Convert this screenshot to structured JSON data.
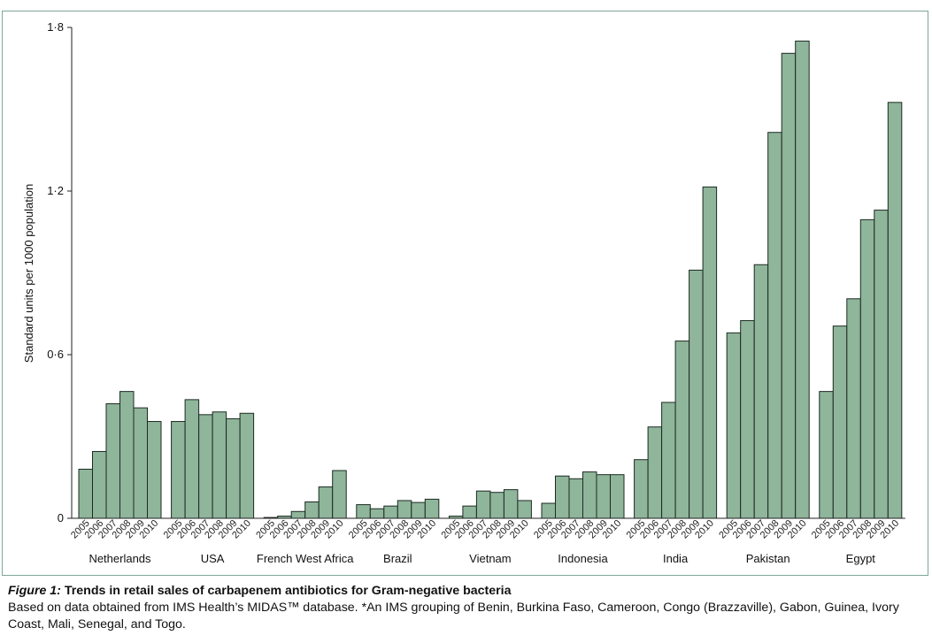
{
  "chart_data": {
    "type": "bar",
    "ylabel": "Standard units per 1000 population",
    "xlabel": "",
    "ylim": [
      0,
      1.8
    ],
    "yticks": [
      {
        "value": 0,
        "label": "0"
      },
      {
        "value": 0.6,
        "label": "0·6"
      },
      {
        "value": 1.2,
        "label": "1·2"
      },
      {
        "value": 1.8,
        "label": "1·8"
      }
    ],
    "years": [
      "2005",
      "2006",
      "2007",
      "2008",
      "2009",
      "2010"
    ],
    "groups": [
      {
        "name": "Netherlands",
        "values": [
          0.18,
          0.245,
          0.42,
          0.465,
          0.405,
          0.355
        ]
      },
      {
        "name": "USA",
        "values": [
          0.355,
          0.435,
          0.38,
          0.39,
          0.365,
          0.385
        ]
      },
      {
        "name": "French West Africa",
        "values": [
          0.003,
          0.008,
          0.025,
          0.06,
          0.115,
          0.175
        ]
      },
      {
        "name": "Brazil",
        "values": [
          0.05,
          0.035,
          0.045,
          0.065,
          0.058,
          0.07
        ]
      },
      {
        "name": "Vietnam",
        "values": [
          0.008,
          0.045,
          0.1,
          0.095,
          0.105,
          0.065
        ]
      },
      {
        "name": "Indonesia",
        "values": [
          0.055,
          0.155,
          0.145,
          0.17,
          0.16,
          0.16
        ]
      },
      {
        "name": "India",
        "values": [
          0.215,
          0.335,
          0.425,
          0.65,
          0.91,
          1.215
        ]
      },
      {
        "name": "Pakistan",
        "values": [
          0.68,
          0.725,
          0.93,
          1.415,
          1.705,
          1.75
        ]
      },
      {
        "name": "Egypt",
        "values": [
          0.465,
          0.705,
          0.805,
          1.095,
          1.13,
          1.525
        ]
      }
    ],
    "bar_color": "#8fb59b",
    "bar_edge_color": "#1c2b22",
    "frame_color": "#7fa796"
  },
  "caption": {
    "figure_label": "Figure 1:",
    "title": "Trends in retail sales of carbapenem antibiotics for Gram-negative bacteria",
    "body": "Based on data obtained from IMS Health’s MIDAS™ database. *An IMS grouping of Benin, Burkina Faso, Cameroon, Congo (Brazzaville), Gabon, Guinea, Ivory Coast, Mali, Senegal, and Togo."
  }
}
